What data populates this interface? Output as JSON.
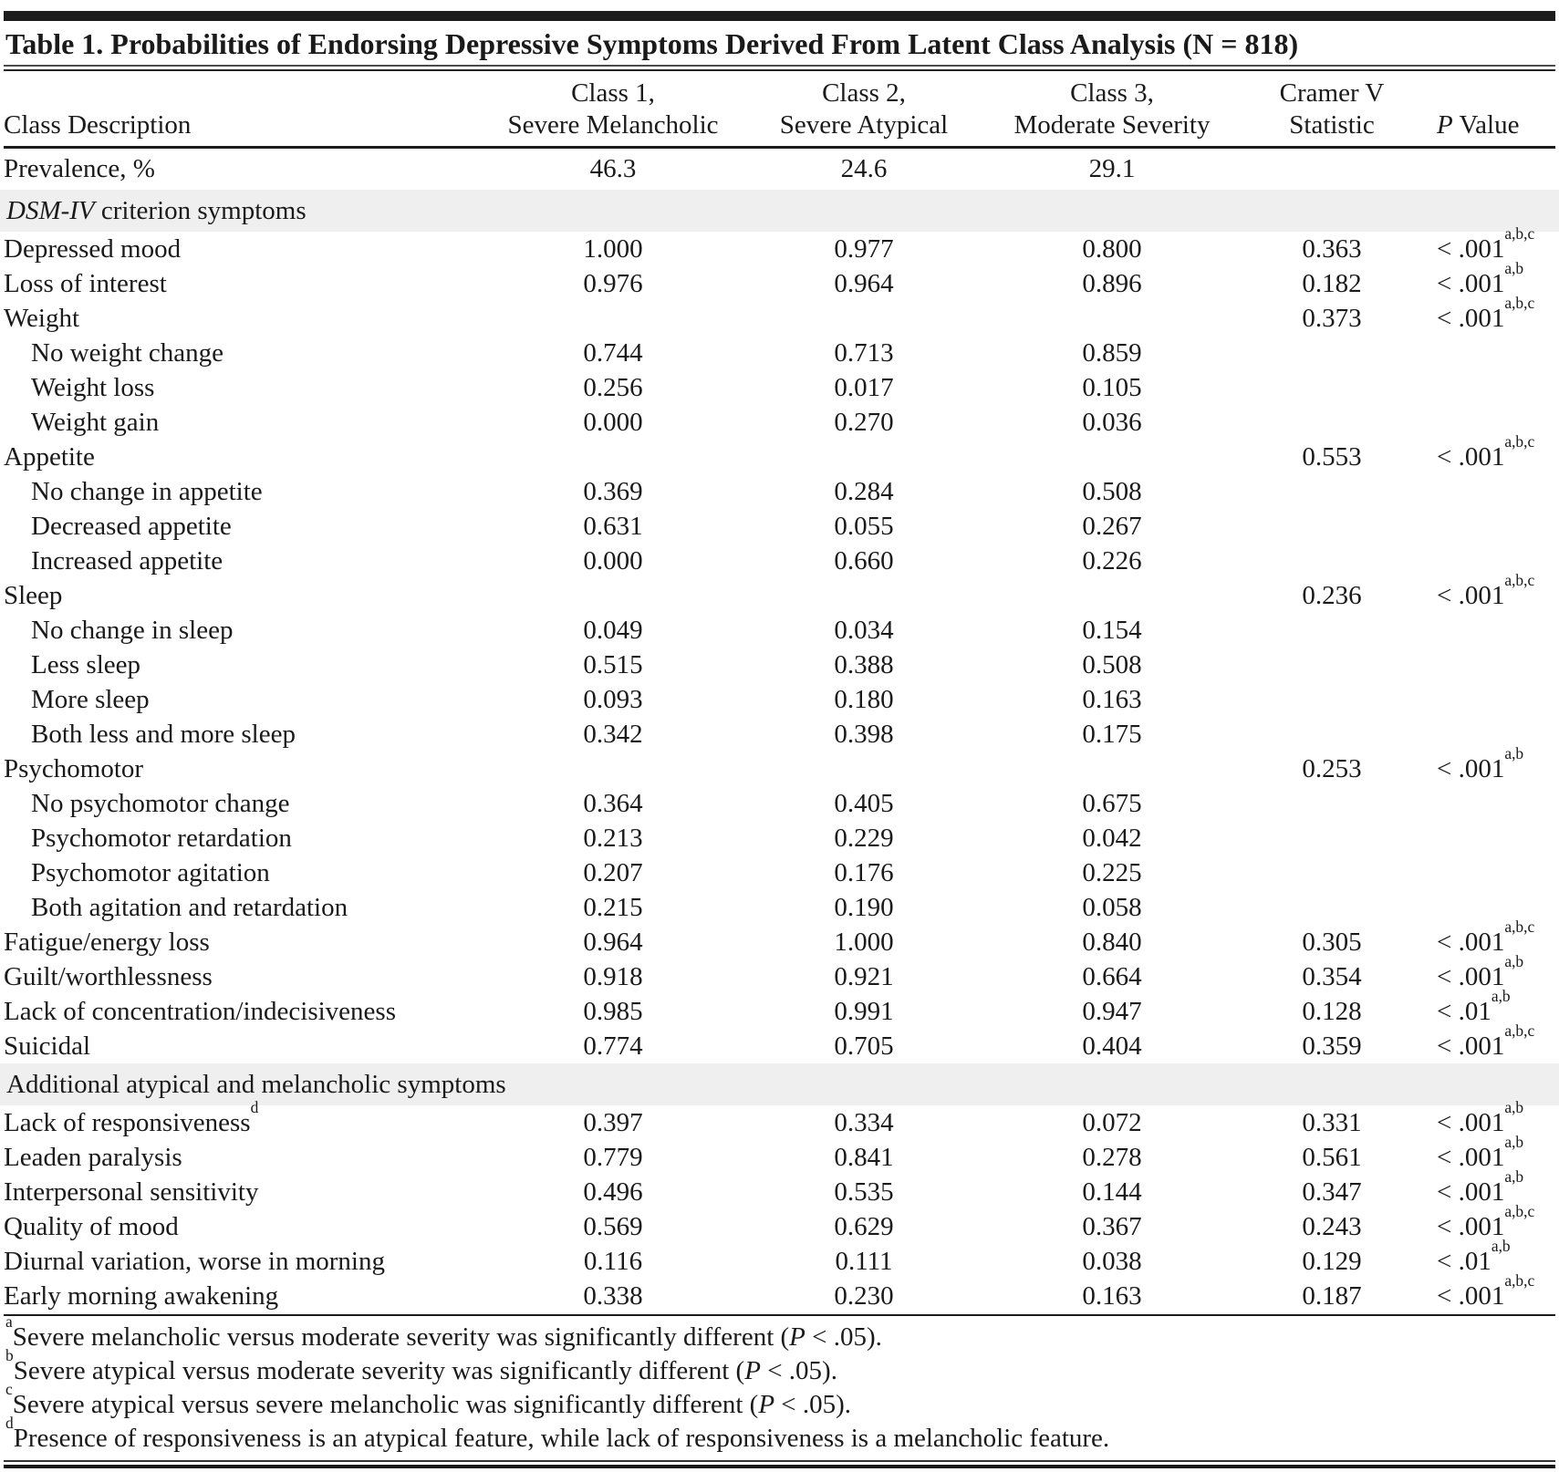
{
  "colors": {
    "background": "#ffffff",
    "text": "#1a1a1a",
    "rule": "#1c1c1c",
    "section_band": "#efefef"
  },
  "table": {
    "title": "Table 1. Probabilities of Endorsing Depressive Symptoms Derived From Latent Class Analysis (N = 818)",
    "header": {
      "col0": {
        "line2": "Class Description"
      },
      "col1": {
        "line1": "Class 1,",
        "line2": "Severe Melancholic"
      },
      "col2": {
        "line1": "Class 2,",
        "line2": "Severe Atypical"
      },
      "col3": {
        "line1": "Class 3,",
        "line2": "Moderate Severity"
      },
      "col4": {
        "line1": "Cramer V",
        "line2": "Statistic"
      },
      "col5": {
        "p": "P",
        "rest": " Value"
      }
    },
    "rows": [
      {
        "label": "Prevalence, %",
        "c1": "46.3",
        "c2": "24.6",
        "c3": "29.1",
        "cramer": "",
        "p": "",
        "psup": "",
        "tall": true
      },
      {
        "type": "section",
        "parts": [
          [
            "DSM-IV",
            true
          ],
          [
            " criterion symptoms",
            false
          ]
        ]
      },
      {
        "label": "Depressed mood",
        "c1": "1.000",
        "c2": "0.977",
        "c3": "0.800",
        "cramer": "0.363",
        "p": "< .001",
        "psup": "a,b,c"
      },
      {
        "label": "Loss of interest",
        "c1": "0.976",
        "c2": "0.964",
        "c3": "0.896",
        "cramer": "0.182",
        "p": "< .001",
        "psup": "a,b"
      },
      {
        "label": "Weight",
        "c1": "",
        "c2": "",
        "c3": "",
        "cramer": "0.373",
        "p": "< .001",
        "psup": "a,b,c"
      },
      {
        "label": "No weight change",
        "indent": true,
        "c1": "0.744",
        "c2": "0.713",
        "c3": "0.859",
        "cramer": "",
        "p": "",
        "psup": ""
      },
      {
        "label": "Weight loss",
        "indent": true,
        "c1": "0.256",
        "c2": "0.017",
        "c3": "0.105",
        "cramer": "",
        "p": "",
        "psup": ""
      },
      {
        "label": "Weight gain",
        "indent": true,
        "c1": "0.000",
        "c2": "0.270",
        "c3": "0.036",
        "cramer": "",
        "p": "",
        "psup": ""
      },
      {
        "label": "Appetite",
        "c1": "",
        "c2": "",
        "c3": "",
        "cramer": "0.553",
        "p": "< .001",
        "psup": "a,b,c"
      },
      {
        "label": "No change in appetite",
        "indent": true,
        "c1": "0.369",
        "c2": "0.284",
        "c3": "0.508",
        "cramer": "",
        "p": "",
        "psup": ""
      },
      {
        "label": "Decreased appetite",
        "indent": true,
        "c1": "0.631",
        "c2": "0.055",
        "c3": "0.267",
        "cramer": "",
        "p": "",
        "psup": ""
      },
      {
        "label": "Increased appetite",
        "indent": true,
        "c1": "0.000",
        "c2": "0.660",
        "c3": "0.226",
        "cramer": "",
        "p": "",
        "psup": ""
      },
      {
        "label": "Sleep",
        "c1": "",
        "c2": "",
        "c3": "",
        "cramer": "0.236",
        "p": "< .001",
        "psup": "a,b,c"
      },
      {
        "label": "No change in sleep",
        "indent": true,
        "c1": "0.049",
        "c2": "0.034",
        "c3": "0.154",
        "cramer": "",
        "p": "",
        "psup": ""
      },
      {
        "label": "Less sleep",
        "indent": true,
        "c1": "0.515",
        "c2": "0.388",
        "c3": "0.508",
        "cramer": "",
        "p": "",
        "psup": ""
      },
      {
        "label": "More sleep",
        "indent": true,
        "c1": "0.093",
        "c2": "0.180",
        "c3": "0.163",
        "cramer": "",
        "p": "",
        "psup": ""
      },
      {
        "label": "Both less and more sleep",
        "indent": true,
        "c1": "0.342",
        "c2": "0.398",
        "c3": "0.175",
        "cramer": "",
        "p": "",
        "psup": ""
      },
      {
        "label": "Psychomotor",
        "c1": "",
        "c2": "",
        "c3": "",
        "cramer": "0.253",
        "p": "< .001",
        "psup": "a,b"
      },
      {
        "label": "No psychomotor change",
        "indent": true,
        "c1": "0.364",
        "c2": "0.405",
        "c3": "0.675",
        "cramer": "",
        "p": "",
        "psup": ""
      },
      {
        "label": "Psychomotor retardation",
        "indent": true,
        "c1": "0.213",
        "c2": "0.229",
        "c3": "0.042",
        "cramer": "",
        "p": "",
        "psup": ""
      },
      {
        "label": "Psychomotor agitation",
        "indent": true,
        "c1": "0.207",
        "c2": "0.176",
        "c3": "0.225",
        "cramer": "",
        "p": "",
        "psup": ""
      },
      {
        "label": "Both agitation and retardation",
        "indent": true,
        "c1": "0.215",
        "c2": "0.190",
        "c3": "0.058",
        "cramer": "",
        "p": "",
        "psup": ""
      },
      {
        "label": "Fatigue/energy loss",
        "c1": "0.964",
        "c2": "1.000",
        "c3": "0.840",
        "cramer": "0.305",
        "p": "< .001",
        "psup": "a,b,c"
      },
      {
        "label": "Guilt/worthlessness",
        "c1": "0.918",
        "c2": "0.921",
        "c3": "0.664",
        "cramer": "0.354",
        "p": "< .001",
        "psup": "a,b"
      },
      {
        "label": "Lack of concentration/indecisiveness",
        "c1": "0.985",
        "c2": "0.991",
        "c3": "0.947",
        "cramer": "0.128",
        "p": "< .01",
        "psup": "a,b"
      },
      {
        "label": "Suicidal",
        "c1": "0.774",
        "c2": "0.705",
        "c3": "0.404",
        "cramer": "0.359",
        "p": "< .001",
        "psup": "a,b,c"
      },
      {
        "type": "section",
        "parts": [
          [
            "Additional atypical and melancholic symptoms",
            false
          ]
        ]
      },
      {
        "label": "Lack of responsiveness",
        "label_sup": "d",
        "c1": "0.397",
        "c2": "0.334",
        "c3": "0.072",
        "cramer": "0.331",
        "p": "< .001",
        "psup": "a,b"
      },
      {
        "label": "Leaden paralysis",
        "c1": "0.779",
        "c2": "0.841",
        "c3": "0.278",
        "cramer": "0.561",
        "p": "< .001",
        "psup": "a,b"
      },
      {
        "label": "Interpersonal sensitivity",
        "c1": "0.496",
        "c2": "0.535",
        "c3": "0.144",
        "cramer": "0.347",
        "p": "< .001",
        "psup": "a,b"
      },
      {
        "label": "Quality of mood",
        "c1": "0.569",
        "c2": "0.629",
        "c3": "0.367",
        "cramer": "0.243",
        "p": "< .001",
        "psup": "a,b,c"
      },
      {
        "label": "Diurnal variation, worse in morning",
        "c1": "0.116",
        "c2": "0.111",
        "c3": "0.038",
        "cramer": "0.129",
        "p": "< .01",
        "psup": "a,b"
      },
      {
        "label": "Early morning awakening",
        "c1": "0.338",
        "c2": "0.230",
        "c3": "0.163",
        "cramer": "0.187",
        "p": "< .001",
        "psup": "a,b,c"
      }
    ],
    "footnotes": [
      {
        "sup": "a",
        "parts": [
          [
            "Severe melancholic versus moderate severity was significantly different (",
            false
          ],
          [
            "P",
            true
          ],
          [
            " < .05).",
            false
          ]
        ]
      },
      {
        "sup": "b",
        "parts": [
          [
            "Severe atypical versus moderate severity was significantly different (",
            false
          ],
          [
            "P",
            true
          ],
          [
            " < .05).",
            false
          ]
        ]
      },
      {
        "sup": "c",
        "parts": [
          [
            "Severe atypical versus severe melancholic was significantly different (",
            false
          ],
          [
            "P",
            true
          ],
          [
            " < .05).",
            false
          ]
        ]
      },
      {
        "sup": "d",
        "parts": [
          [
            "Presence of responsiveness is an atypical feature, while lack of responsiveness is a melancholic feature.",
            false
          ]
        ]
      }
    ]
  }
}
